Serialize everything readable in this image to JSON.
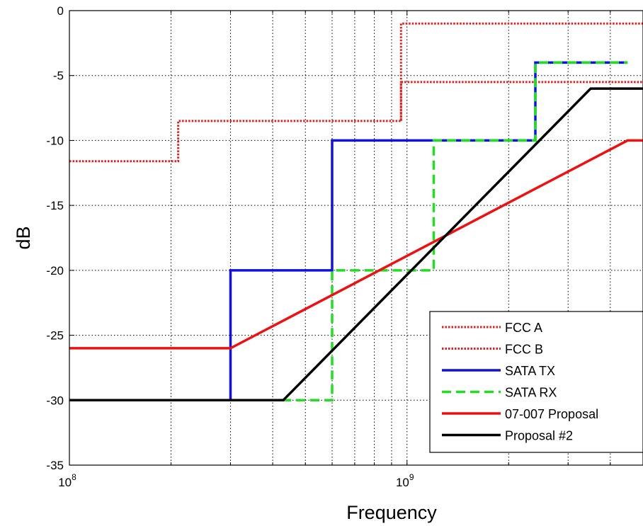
{
  "chart_data": {
    "type": "line",
    "title": "",
    "xlabel": "Frequency",
    "ylabel": "dB",
    "xscale": "log",
    "xlim": [
      100000000,
      5000000000
    ],
    "ylim": [
      -35,
      0
    ],
    "grid": true,
    "legend_position": "bottom-right",
    "x_ticks": [
      {
        "value": 100000000,
        "base": "10",
        "exp": "8"
      },
      {
        "value": 1000000000,
        "base": "10",
        "exp": "9"
      }
    ],
    "y_ticks": [
      {
        "value": 0,
        "label": "0"
      },
      {
        "value": -5,
        "label": "-5"
      },
      {
        "value": -10,
        "label": "-10"
      },
      {
        "value": -15,
        "label": "-15"
      },
      {
        "value": -20,
        "label": "-20"
      },
      {
        "value": -25,
        "label": "-25"
      },
      {
        "value": -30,
        "label": "-30"
      },
      {
        "value": -35,
        "label": "-35"
      }
    ],
    "series": [
      {
        "name": "FCC A",
        "color": "#dd2222",
        "style": "dotted",
        "x": [
          100000000,
          210000000,
          210000000,
          960000000,
          960000000,
          5000000000
        ],
        "y": [
          -11.6,
          -11.6,
          -8.5,
          -8.5,
          -5.5,
          -5.5
        ]
      },
      {
        "name": "FCC B",
        "color": "#dd2222",
        "style": "dotted",
        "x": [
          960000000,
          960000000,
          5000000000
        ],
        "y": [
          -8.5,
          -1.0,
          -1.0
        ]
      },
      {
        "name": "SATA TX",
        "color": "#1010e0",
        "style": "solid",
        "x": [
          100000000,
          300000000,
          300000000,
          600000000,
          600000000,
          2400000000,
          2400000000,
          4500000000
        ],
        "y": [
          -30,
          -30,
          -20,
          -20,
          -10,
          -10,
          -4,
          -4
        ]
      },
      {
        "name": "SATA RX",
        "color": "#22dd22",
        "style": "dashed",
        "x": [
          100000000,
          300000000,
          430000000,
          600000000,
          600000000,
          1200000000,
          1200000000,
          2400000000,
          2400000000,
          4500000000
        ],
        "y": [
          -30,
          -30,
          -30,
          -30,
          -20,
          -20,
          -10,
          -10,
          -4,
          -4
        ]
      },
      {
        "name": "07-007 Proposal",
        "color": "#ee1111",
        "style": "solid",
        "x": [
          100000000,
          300000000,
          4500000000,
          5000000000
        ],
        "y": [
          -26,
          -26,
          -10,
          -10
        ]
      },
      {
        "name": "Proposal #2",
        "color": "#000000",
        "style": "solid",
        "x": [
          100000000,
          430000000,
          3500000000,
          5000000000
        ],
        "y": [
          -30,
          -30,
          -6,
          -6
        ]
      }
    ]
  }
}
